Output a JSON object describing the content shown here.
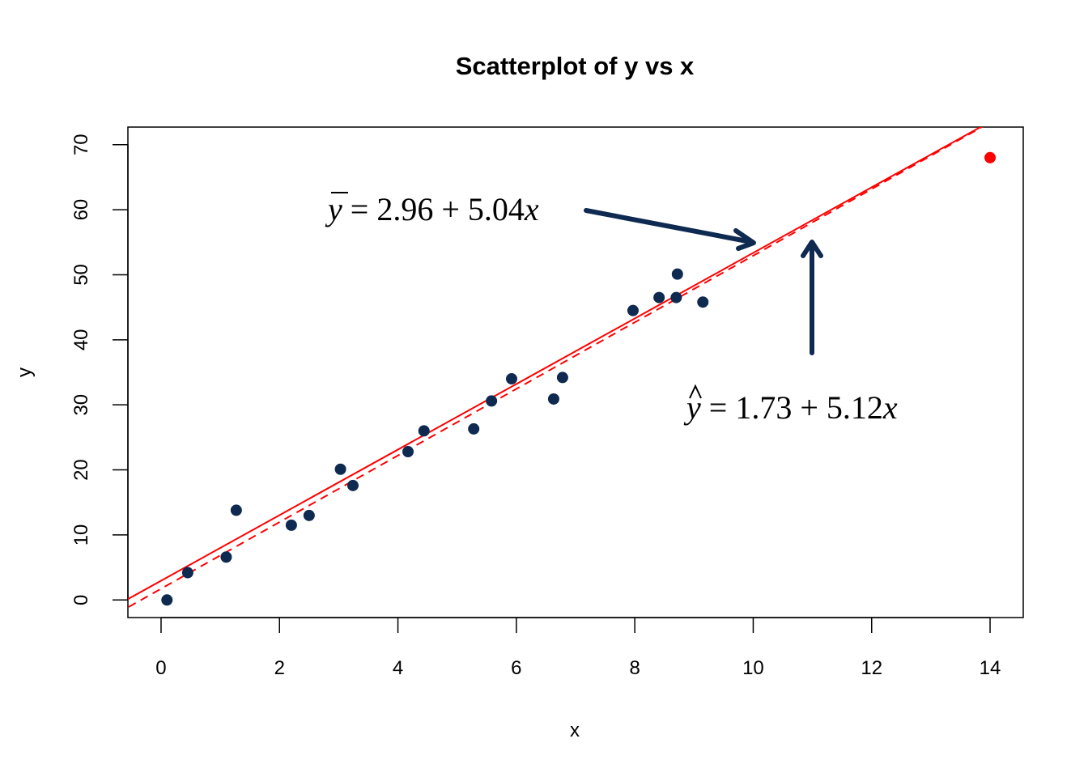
{
  "chart_data": {
    "type": "scatter",
    "title": "Scatterplot of y vs x",
    "xlabel": "x",
    "ylabel": "y",
    "xlim": [
      -0.56,
      14.56
    ],
    "ylim": [
      -2.7,
      72.7
    ],
    "xticks": [
      0,
      2,
      4,
      6,
      8,
      10,
      12,
      14
    ],
    "yticks": [
      0,
      10,
      20,
      30,
      40,
      50,
      60,
      70
    ],
    "grid": false,
    "legend": "none",
    "points": [
      {
        "x": 0.1,
        "y": 0.0
      },
      {
        "x": 0.45,
        "y": 4.2
      },
      {
        "x": 1.1,
        "y": 6.6
      },
      {
        "x": 1.27,
        "y": 13.8
      },
      {
        "x": 2.2,
        "y": 11.5
      },
      {
        "x": 2.5,
        "y": 13.0
      },
      {
        "x": 3.03,
        "y": 20.1
      },
      {
        "x": 3.24,
        "y": 17.6
      },
      {
        "x": 4.17,
        "y": 22.8
      },
      {
        "x": 4.44,
        "y": 26.0
      },
      {
        "x": 5.28,
        "y": 26.3
      },
      {
        "x": 5.58,
        "y": 30.6
      },
      {
        "x": 5.92,
        "y": 34.0
      },
      {
        "x": 6.63,
        "y": 30.9
      },
      {
        "x": 6.78,
        "y": 34.2
      },
      {
        "x": 7.97,
        "y": 44.5
      },
      {
        "x": 8.41,
        "y": 46.5
      },
      {
        "x": 8.7,
        "y": 46.5
      },
      {
        "x": 8.72,
        "y": 50.1
      },
      {
        "x": 9.15,
        "y": 45.8
      }
    ],
    "highlight_point": {
      "x": 14.0,
      "y": 68.0
    },
    "lines": [
      {
        "style": "dashed",
        "intercept": 1.73,
        "slope": 5.12
      },
      {
        "style": "solid",
        "intercept": 2.96,
        "slope": 5.04
      }
    ],
    "annotations": [
      {
        "symbol": "y",
        "accent": "bar",
        "text": " = 2.96 + 5.04",
        "var": "x"
      },
      {
        "symbol": "y",
        "accent": "hat",
        "text": " = 1.73 + 5.12",
        "var": "x"
      }
    ],
    "colors": {
      "points": "#0e2a50",
      "highlight": "#ff0000",
      "lines": "#ff0000",
      "arrows": "#0e2a50",
      "frame": "#000000"
    }
  }
}
